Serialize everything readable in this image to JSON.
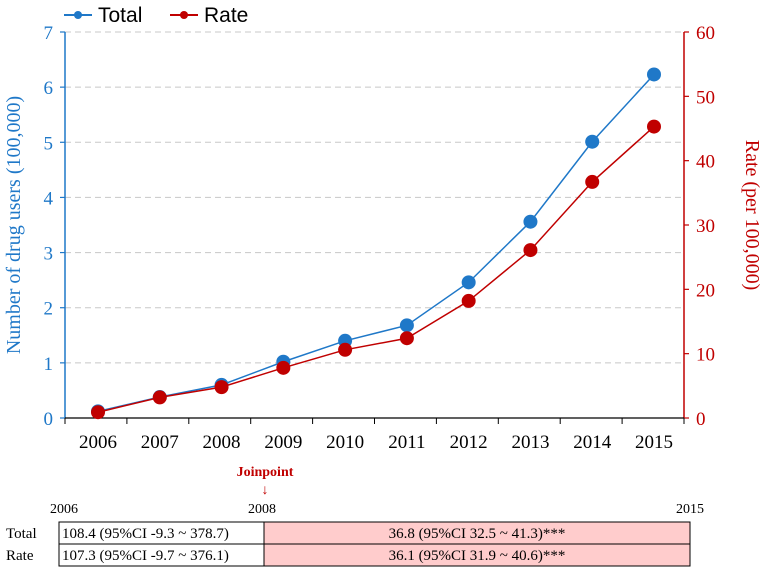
{
  "chart_data": {
    "type": "line",
    "categories": [
      "2006",
      "2007",
      "2008",
      "2009",
      "2010",
      "2011",
      "2012",
      "2013",
      "2014",
      "2015"
    ],
    "series": [
      {
        "name": "Total",
        "axis": "left",
        "color": "#1f78c8",
        "values": [
          0.12,
          0.38,
          0.6,
          1.02,
          1.4,
          1.68,
          2.46,
          3.56,
          5.01,
          6.23
        ]
      },
      {
        "name": "Rate",
        "axis": "right",
        "color": "#c00000",
        "values": [
          0.9,
          3.2,
          4.8,
          7.8,
          10.6,
          12.4,
          18.2,
          26.1,
          36.7,
          45.3
        ]
      }
    ],
    "y_left": {
      "label": "Number of drug users (100,000)",
      "range": [
        0,
        7
      ],
      "ticks": [
        "0",
        "1",
        "2",
        "3",
        "4",
        "5",
        "6",
        "7"
      ]
    },
    "y_right": {
      "label": "Rate (per 100,000)",
      "range": [
        0,
        60
      ],
      "ticks": [
        "0",
        "10",
        "20",
        "30",
        "40",
        "50",
        "60"
      ]
    },
    "grid": "horizontal dashed",
    "legend": "top-left"
  },
  "joinpoint": {
    "label": "Joinpoint",
    "arrow": "↓",
    "start_year": "2006",
    "joinpoint_year": "2008",
    "end_year": "2015"
  },
  "apc_table": {
    "rows": [
      {
        "label": "Total",
        "segment1": "108.4 (95%CI -9.3 ~ 378.7)",
        "segment2": "36.8 (95%CI 32.5 ~ 41.3)***"
      },
      {
        "label": "Rate",
        "segment1": "107.3 (95%CI -9.7 ~ 376.1)",
        "segment2": "36.1 (95%CI 31.9 ~ 40.6)***"
      }
    ],
    "highlight_color": "#ffcccc"
  }
}
